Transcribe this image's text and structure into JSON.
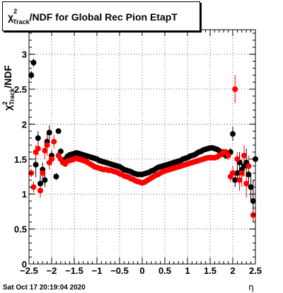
{
  "chart_data": {
    "type": "scatter",
    "title_main": "χ",
    "title_sup": "2",
    "title_sub": "Track",
    "title_rest": "/NDF for Global Rec Pion EtapT",
    "ylabel_main": "χ",
    "ylabel_sup": "2",
    "ylabel_sub": "Track",
    "ylabel_rest": "/NDF",
    "xlabel": "η",
    "xlim": [
      -2.5,
      2.5
    ],
    "ylim": [
      0,
      3.35
    ],
    "xticks": [
      -2.5,
      -2,
      -1.5,
      -1,
      -0.5,
      0,
      0.5,
      1,
      1.5,
      2,
      2.5
    ],
    "xtick_labels": [
      "−2.5",
      "−2",
      "−1.5",
      "−1",
      "−0.5",
      "0",
      "0.5",
      "1",
      "1.5",
      "2",
      "2.5"
    ],
    "yticks": [
      0,
      0.5,
      1,
      1.5,
      2,
      2.5,
      3
    ],
    "ytick_labels": [
      "0",
      "0.5",
      "1",
      "1.5",
      "2",
      "2.5",
      "3"
    ],
    "grid": true,
    "series": [
      {
        "color": "#000000",
        "points": [
          [
            -2.45,
            2.7,
            0.06
          ],
          [
            -2.4,
            2.88,
            0.06
          ],
          [
            -2.35,
            1.42,
            0.18
          ],
          [
            -2.3,
            1.8,
            0.1
          ],
          [
            -2.25,
            1.15,
            0.12
          ],
          [
            -2.2,
            1.35,
            0.1
          ],
          [
            -2.15,
            1.2,
            0.1
          ],
          [
            -2.1,
            1.75,
            0.12
          ],
          [
            -2.05,
            1.88,
            0.1
          ],
          [
            -2.0,
            1.55,
            0.08
          ],
          [
            -1.9,
            1.25,
            0.05
          ],
          [
            -1.85,
            1.9,
            0.04
          ],
          [
            -1.8,
            1.61,
            0.03
          ],
          [
            -1.75,
            1.45,
            0
          ],
          [
            -1.7,
            1.5,
            0
          ],
          [
            -1.65,
            1.54,
            0
          ],
          [
            -1.6,
            1.56,
            0
          ],
          [
            -1.55,
            1.57,
            0
          ],
          [
            -1.5,
            1.58,
            0
          ],
          [
            -1.45,
            1.59,
            0
          ],
          [
            -1.4,
            1.58,
            0
          ],
          [
            -1.35,
            1.57,
            0
          ],
          [
            -1.3,
            1.56,
            0
          ],
          [
            -1.25,
            1.55,
            0
          ],
          [
            -1.2,
            1.54,
            0
          ],
          [
            -1.15,
            1.53,
            0
          ],
          [
            -1.1,
            1.52,
            0
          ],
          [
            -1.05,
            1.51,
            0
          ],
          [
            -1.0,
            1.5,
            0
          ],
          [
            -0.95,
            1.48,
            0
          ],
          [
            -0.9,
            1.47,
            0
          ],
          [
            -0.85,
            1.46,
            0
          ],
          [
            -0.8,
            1.45,
            0
          ],
          [
            -0.75,
            1.44,
            0
          ],
          [
            -0.7,
            1.43,
            0
          ],
          [
            -0.65,
            1.42,
            0
          ],
          [
            -0.6,
            1.41,
            0
          ],
          [
            -0.55,
            1.4,
            0
          ],
          [
            -0.5,
            1.39,
            0
          ],
          [
            -0.45,
            1.37,
            0
          ],
          [
            -0.4,
            1.35,
            0
          ],
          [
            -0.35,
            1.34,
            0
          ],
          [
            -0.3,
            1.33,
            0
          ],
          [
            -0.25,
            1.32,
            0
          ],
          [
            -0.2,
            1.3,
            0
          ],
          [
            -0.15,
            1.29,
            0
          ],
          [
            -0.1,
            1.28,
            0
          ],
          [
            -0.05,
            1.28,
            0
          ],
          [
            0.0,
            1.28,
            0
          ],
          [
            0.05,
            1.29,
            0
          ],
          [
            0.1,
            1.3,
            0
          ],
          [
            0.15,
            1.31,
            0
          ],
          [
            0.2,
            1.33,
            0
          ],
          [
            0.25,
            1.34,
            0
          ],
          [
            0.3,
            1.36,
            0
          ],
          [
            0.35,
            1.38,
            0
          ],
          [
            0.4,
            1.39,
            0
          ],
          [
            0.45,
            1.4,
            0
          ],
          [
            0.5,
            1.41,
            0
          ],
          [
            0.55,
            1.42,
            0
          ],
          [
            0.6,
            1.43,
            0
          ],
          [
            0.65,
            1.44,
            0
          ],
          [
            0.7,
            1.45,
            0
          ],
          [
            0.75,
            1.46,
            0
          ],
          [
            0.8,
            1.47,
            0
          ],
          [
            0.85,
            1.48,
            0
          ],
          [
            0.9,
            1.5,
            0
          ],
          [
            0.95,
            1.51,
            0
          ],
          [
            1.0,
            1.52,
            0
          ],
          [
            1.05,
            1.54,
            0
          ],
          [
            1.1,
            1.55,
            0
          ],
          [
            1.15,
            1.56,
            0
          ],
          [
            1.2,
            1.58,
            0
          ],
          [
            1.25,
            1.6,
            0
          ],
          [
            1.3,
            1.61,
            0
          ],
          [
            1.35,
            1.63,
            0
          ],
          [
            1.4,
            1.64,
            0
          ],
          [
            1.45,
            1.65,
            0
          ],
          [
            1.5,
            1.66,
            0
          ],
          [
            1.55,
            1.66,
            0
          ],
          [
            1.6,
            1.65,
            0
          ],
          [
            1.65,
            1.64,
            0
          ],
          [
            1.7,
            1.62,
            0
          ],
          [
            1.75,
            1.6,
            0.03
          ],
          [
            1.8,
            1.57,
            0.04
          ],
          [
            1.85,
            1.55,
            0.05
          ],
          [
            1.95,
            1.6,
            0.06
          ],
          [
            2.0,
            1.86,
            0.1
          ],
          [
            2.05,
            1.2,
            0.1
          ],
          [
            2.1,
            1.3,
            0.12
          ],
          [
            2.15,
            1.45,
            0.15
          ],
          [
            2.2,
            1.35,
            0.15
          ],
          [
            2.25,
            1.4,
            0.15
          ],
          [
            2.3,
            1.45,
            0.2
          ],
          [
            2.35,
            1.28,
            0.15
          ],
          [
            2.4,
            1.1,
            0.2
          ],
          [
            2.45,
            0.9,
            0.3
          ],
          [
            2.5,
            1.5,
            0.15
          ]
        ]
      },
      {
        "color": "#ff0000",
        "points": [
          [
            -2.45,
            1.3,
            0.06
          ],
          [
            -2.4,
            1.1,
            0.08
          ],
          [
            -2.35,
            1.6,
            0.1
          ],
          [
            -2.3,
            1.65,
            0.1
          ],
          [
            -2.25,
            1.05,
            0.1
          ],
          [
            -2.2,
            1.3,
            0.12
          ],
          [
            -2.15,
            1.62,
            0.12
          ],
          [
            -2.1,
            1.7,
            0.15
          ],
          [
            -2.05,
            1.45,
            0.1
          ],
          [
            -2.0,
            1.5,
            0.08
          ],
          [
            -1.95,
            1.75,
            0.1
          ],
          [
            -1.85,
            1.55,
            0.05
          ],
          [
            -1.8,
            1.5,
            0.03
          ],
          [
            -1.75,
            1.45,
            0.03
          ],
          [
            -1.7,
            1.43,
            0
          ],
          [
            -1.65,
            1.47,
            0
          ],
          [
            -1.6,
            1.48,
            0
          ],
          [
            -1.55,
            1.49,
            0
          ],
          [
            -1.5,
            1.5,
            0
          ],
          [
            -1.45,
            1.51,
            0
          ],
          [
            -1.4,
            1.5,
            0
          ],
          [
            -1.35,
            1.49,
            0
          ],
          [
            -1.3,
            1.48,
            0
          ],
          [
            -1.25,
            1.47,
            0
          ],
          [
            -1.2,
            1.45,
            0
          ],
          [
            -1.15,
            1.43,
            0
          ],
          [
            -1.1,
            1.41,
            0
          ],
          [
            -1.05,
            1.39,
            0
          ],
          [
            -1.0,
            1.38,
            0
          ],
          [
            -0.95,
            1.37,
            0
          ],
          [
            -0.9,
            1.36,
            0
          ],
          [
            -0.85,
            1.35,
            0
          ],
          [
            -0.8,
            1.35,
            0
          ],
          [
            -0.75,
            1.34,
            0
          ],
          [
            -0.7,
            1.34,
            0
          ],
          [
            -0.65,
            1.33,
            0
          ],
          [
            -0.6,
            1.32,
            0
          ],
          [
            -0.55,
            1.31,
            0
          ],
          [
            -0.5,
            1.29,
            0
          ],
          [
            -0.45,
            1.28,
            0
          ],
          [
            -0.4,
            1.26,
            0
          ],
          [
            -0.35,
            1.25,
            0
          ],
          [
            -0.3,
            1.24,
            0
          ],
          [
            -0.25,
            1.22,
            0
          ],
          [
            -0.2,
            1.21,
            0
          ],
          [
            -0.15,
            1.19,
            0
          ],
          [
            -0.1,
            1.18,
            0
          ],
          [
            -0.05,
            1.17,
            0
          ],
          [
            0.0,
            1.16,
            0
          ],
          [
            0.05,
            1.17,
            0
          ],
          [
            0.1,
            1.19,
            0
          ],
          [
            0.15,
            1.21,
            0
          ],
          [
            0.2,
            1.23,
            0
          ],
          [
            0.25,
            1.25,
            0
          ],
          [
            0.3,
            1.27,
            0
          ],
          [
            0.35,
            1.28,
            0
          ],
          [
            0.4,
            1.3,
            0
          ],
          [
            0.45,
            1.32,
            0
          ],
          [
            0.5,
            1.33,
            0
          ],
          [
            0.55,
            1.34,
            0
          ],
          [
            0.6,
            1.35,
            0
          ],
          [
            0.65,
            1.36,
            0
          ],
          [
            0.7,
            1.37,
            0
          ],
          [
            0.75,
            1.38,
            0
          ],
          [
            0.8,
            1.39,
            0
          ],
          [
            0.85,
            1.4,
            0
          ],
          [
            0.9,
            1.41,
            0
          ],
          [
            0.95,
            1.42,
            0
          ],
          [
            1.0,
            1.43,
            0
          ],
          [
            1.05,
            1.44,
            0
          ],
          [
            1.1,
            1.45,
            0
          ],
          [
            1.15,
            1.46,
            0
          ],
          [
            1.2,
            1.47,
            0
          ],
          [
            1.25,
            1.48,
            0
          ],
          [
            1.3,
            1.49,
            0
          ],
          [
            1.35,
            1.5,
            0
          ],
          [
            1.4,
            1.51,
            0
          ],
          [
            1.45,
            1.52,
            0
          ],
          [
            1.5,
            1.52,
            0
          ],
          [
            1.55,
            1.52,
            0
          ],
          [
            1.6,
            1.52,
            0
          ],
          [
            1.65,
            1.53,
            0.02
          ],
          [
            1.7,
            1.55,
            0.03
          ],
          [
            1.75,
            1.57,
            0.04
          ],
          [
            1.8,
            1.6,
            0.05
          ],
          [
            1.85,
            1.6,
            0.05
          ],
          [
            1.9,
            1.55,
            0.06
          ],
          [
            1.95,
            1.25,
            0.08
          ],
          [
            2.0,
            1.3,
            0.1
          ],
          [
            2.05,
            2.5,
            0.2
          ],
          [
            2.1,
            1.5,
            0.1
          ],
          [
            2.15,
            1.2,
            0.15
          ],
          [
            2.2,
            1.3,
            0.2
          ],
          [
            2.25,
            1.55,
            0.15
          ],
          [
            2.3,
            1.15,
            0.2
          ],
          [
            2.35,
            1.4,
            0.15
          ],
          [
            2.45,
            0.7,
            0.1
          ]
        ]
      }
    ]
  },
  "footer": {
    "timestamp": "Sat Oct 17 20:19:04 2020"
  }
}
